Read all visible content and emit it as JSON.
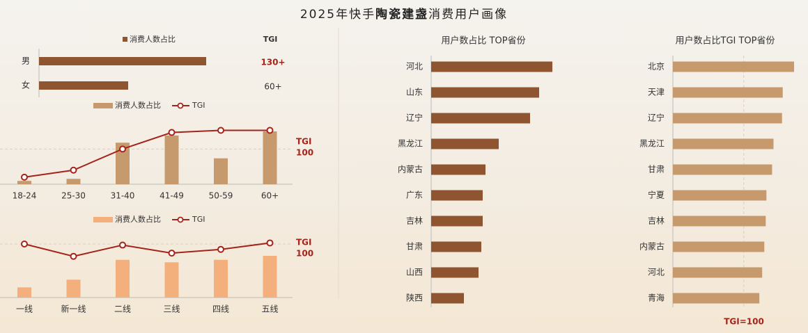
{
  "page": {
    "title_pre": "2025年快手",
    "title_bold": "陶瓷建盏",
    "title_post": "消费用户画像"
  },
  "colors": {
    "dark_brown": "#8f5530",
    "tan": "#c79a6e",
    "peach": "#f4b07c",
    "tgi_red": "#a5241a",
    "axis": "#bbbbbb",
    "ref_line": "#d8cfc4"
  },
  "chart_data": [
    {
      "id": "gender",
      "type": "bar",
      "orientation": "horizontal",
      "legend": [
        "消费人数占比"
      ],
      "tgi_header": "TGI",
      "categories": [
        "男",
        "女"
      ],
      "values": [
        75,
        40
      ],
      "tgi_labels": [
        "130+",
        "60+"
      ],
      "highlight_tgi": [
        true,
        false
      ]
    },
    {
      "id": "age",
      "type": "bar",
      "legend": [
        "消费人数占比",
        "TGI"
      ],
      "categories": [
        "18-24",
        "25-30",
        "31-40",
        "41-49",
        "50-59",
        "60+"
      ],
      "bars": [
        1.3,
        2.1,
        16.2,
        19.0,
        10.1,
        20.6
      ],
      "tgi": [
        20,
        40,
        100,
        147,
        153,
        153
      ],
      "ref_label": [
        "TGI",
        "100"
      ],
      "ref_value": 100
    },
    {
      "id": "city_tier",
      "type": "bar",
      "legend": [
        "消费人数占比",
        "TGI"
      ],
      "categories": [
        "一线",
        "新一线",
        "二线",
        "三线",
        "四线",
        "五线"
      ],
      "bars": [
        4.1,
        7.2,
        15.2,
        14.2,
        15.2,
        16.8
      ],
      "tgi": [
        100,
        77,
        98,
        83,
        90,
        102
      ],
      "ref_label": [
        "TGI",
        "100"
      ],
      "ref_value": 100
    },
    {
      "id": "province_share",
      "type": "bar",
      "orientation": "horizontal",
      "title": "用户数占比 TOP省份",
      "categories": [
        "河北",
        "山东",
        "辽宁",
        "黑龙江",
        "内蒙古",
        "广东",
        "吉林",
        "甘肃",
        "山西",
        "陕西"
      ],
      "values": [
        17.4,
        15.5,
        14.2,
        9.7,
        7.8,
        7.4,
        7.4,
        7.2,
        6.8,
        4.7
      ]
    },
    {
      "id": "province_tgi",
      "type": "bar",
      "orientation": "horizontal",
      "title": "用户数占比TGI TOP省份",
      "categories": [
        "北京",
        "天津",
        "辽宁",
        "黑龙江",
        "甘肃",
        "宁夏",
        "吉林",
        "内蒙古",
        "河北",
        "青海"
      ],
      "values": [
        171,
        155,
        154,
        142,
        140,
        132,
        131,
        129,
        126,
        122
      ],
      "ref_value": 100,
      "ref_label": "TGI=100"
    }
  ]
}
